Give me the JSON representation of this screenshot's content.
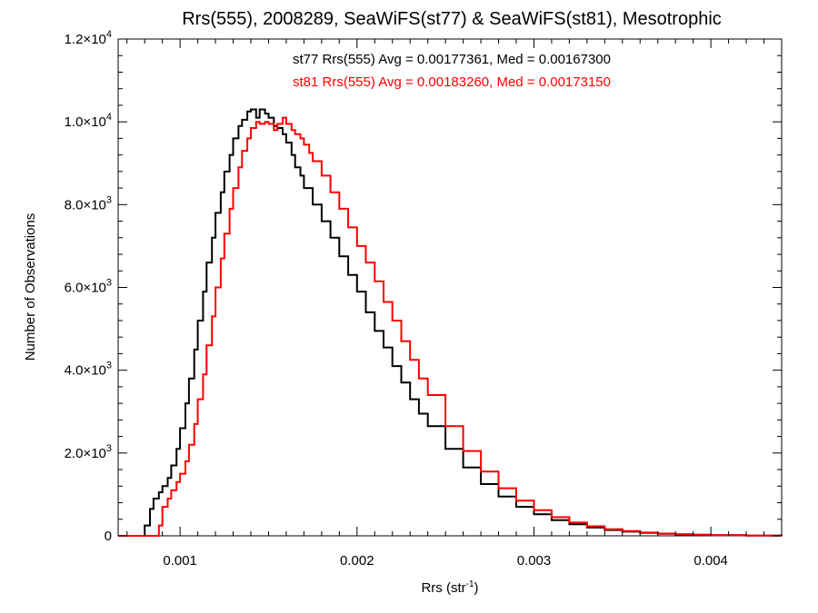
{
  "chart_data": {
    "type": "histogram",
    "title": "Rrs(555), 2008289, SeaWiFS(st77) & SeaWiFS(st81), Mesotrophic",
    "xlabel_base": "Rrs (str",
    "xlabel_sup": "-1",
    "xlabel_close": ")",
    "ylabel": "Number of Observations",
    "xlim": [
      0.00065,
      0.0044
    ],
    "ylim": [
      0,
      12000
    ],
    "x_ticks": [
      {
        "value": 0.001,
        "label": "0.001"
      },
      {
        "value": 0.002,
        "label": "0.002"
      },
      {
        "value": 0.003,
        "label": "0.003"
      },
      {
        "value": 0.004,
        "label": "0.004"
      }
    ],
    "y_ticks": [
      {
        "value": 0,
        "mant": "0",
        "exp": ""
      },
      {
        "value": 2000,
        "mant": "2.0×10",
        "exp": "3"
      },
      {
        "value": 4000,
        "mant": "4.0×10",
        "exp": "3"
      },
      {
        "value": 6000,
        "mant": "6.0×10",
        "exp": "3"
      },
      {
        "value": 8000,
        "mant": "8.0×10",
        "exp": "3"
      },
      {
        "value": 10000,
        "mant": "1.0×10",
        "exp": "4"
      },
      {
        "value": 12000,
        "mant": "1.2×10",
        "exp": "4"
      }
    ],
    "annotations": [
      {
        "text": "st77 Rrs(555) Avg = 0.00177361, Med = 0.00167300",
        "color": "#000000"
      },
      {
        "text": "st81 Rrs(555) Avg = 0.00183260, Med = 0.00173150",
        "color": "#ff0000"
      }
    ],
    "series": [
      {
        "color": "#000000",
        "x": [
          0.00065,
          0.0008,
          0.0008,
          0.00083,
          0.00085,
          0.00088,
          0.0009,
          0.00093,
          0.00095,
          0.00098,
          0.001,
          0.00103,
          0.00105,
          0.00108,
          0.0011,
          0.00113,
          0.00115,
          0.00118,
          0.0012,
          0.00123,
          0.00125,
          0.00128,
          0.0013,
          0.00133,
          0.00135,
          0.00138,
          0.0014,
          0.00143,
          0.00145,
          0.00148,
          0.0015,
          0.00153,
          0.00155,
          0.00158,
          0.0016,
          0.00163,
          0.00165,
          0.00168,
          0.0017,
          0.00175,
          0.0018,
          0.00185,
          0.0019,
          0.00195,
          0.002,
          0.00205,
          0.0021,
          0.00215,
          0.0022,
          0.00225,
          0.0023,
          0.00235,
          0.0024,
          0.0025,
          0.0026,
          0.0027,
          0.0028,
          0.0029,
          0.003,
          0.0031,
          0.0032,
          0.0033,
          0.0034,
          0.0035,
          0.0036,
          0.0037,
          0.0038,
          0.0039,
          0.004,
          0.0042,
          0.0044
        ],
        "y": [
          0,
          0,
          250,
          650,
          900,
          1050,
          1200,
          1400,
          1700,
          2100,
          2600,
          3200,
          3800,
          4500,
          5200,
          5900,
          6600,
          7200,
          7800,
          8300,
          8800,
          9200,
          9600,
          9900,
          10050,
          10250,
          10300,
          10100,
          10300,
          10200,
          10100,
          9900,
          9850,
          9700,
          9500,
          9200,
          8900,
          8700,
          8400,
          8000,
          7600,
          7200,
          6750,
          6300,
          5900,
          5400,
          4950,
          4550,
          4100,
          3700,
          3300,
          2950,
          2650,
          2100,
          1650,
          1250,
          950,
          700,
          520,
          380,
          280,
          200,
          140,
          100,
          70,
          50,
          35,
          25,
          15,
          5,
          0
        ]
      },
      {
        "color": "#ff0000",
        "x": [
          0.00065,
          0.00085,
          0.00088,
          0.0009,
          0.00093,
          0.00095,
          0.00098,
          0.001,
          0.00103,
          0.00105,
          0.00108,
          0.0011,
          0.00113,
          0.00115,
          0.00118,
          0.0012,
          0.00123,
          0.00125,
          0.00128,
          0.0013,
          0.00133,
          0.00135,
          0.00138,
          0.0014,
          0.00143,
          0.00145,
          0.00148,
          0.0015,
          0.00153,
          0.00155,
          0.00158,
          0.0016,
          0.00163,
          0.00165,
          0.00168,
          0.0017,
          0.00173,
          0.00175,
          0.0018,
          0.00185,
          0.0019,
          0.00195,
          0.002,
          0.00205,
          0.0021,
          0.00215,
          0.0022,
          0.00225,
          0.0023,
          0.00235,
          0.0024,
          0.0025,
          0.0026,
          0.0027,
          0.0028,
          0.0029,
          0.003,
          0.0031,
          0.0032,
          0.0033,
          0.0034,
          0.0035,
          0.0036,
          0.0037,
          0.0038,
          0.0039,
          0.004,
          0.0042,
          0.0044
        ],
        "y": [
          0,
          0,
          250,
          700,
          900,
          1100,
          1300,
          1500,
          1800,
          2200,
          2700,
          3300,
          3900,
          4600,
          5300,
          6000,
          6700,
          7300,
          7900,
          8400,
          8900,
          9300,
          9600,
          9850,
          10000,
          9950,
          10000,
          9950,
          9800,
          9950,
          10100,
          9950,
          9800,
          9700,
          9600,
          9450,
          9250,
          9050,
          8700,
          8300,
          7900,
          7450,
          7000,
          6600,
          6150,
          5650,
          5200,
          4700,
          4250,
          3800,
          3400,
          2650,
          2050,
          1550,
          1150,
          850,
          620,
          450,
          320,
          230,
          160,
          115,
          80,
          55,
          40,
          28,
          18,
          6,
          0
        ]
      }
    ]
  }
}
